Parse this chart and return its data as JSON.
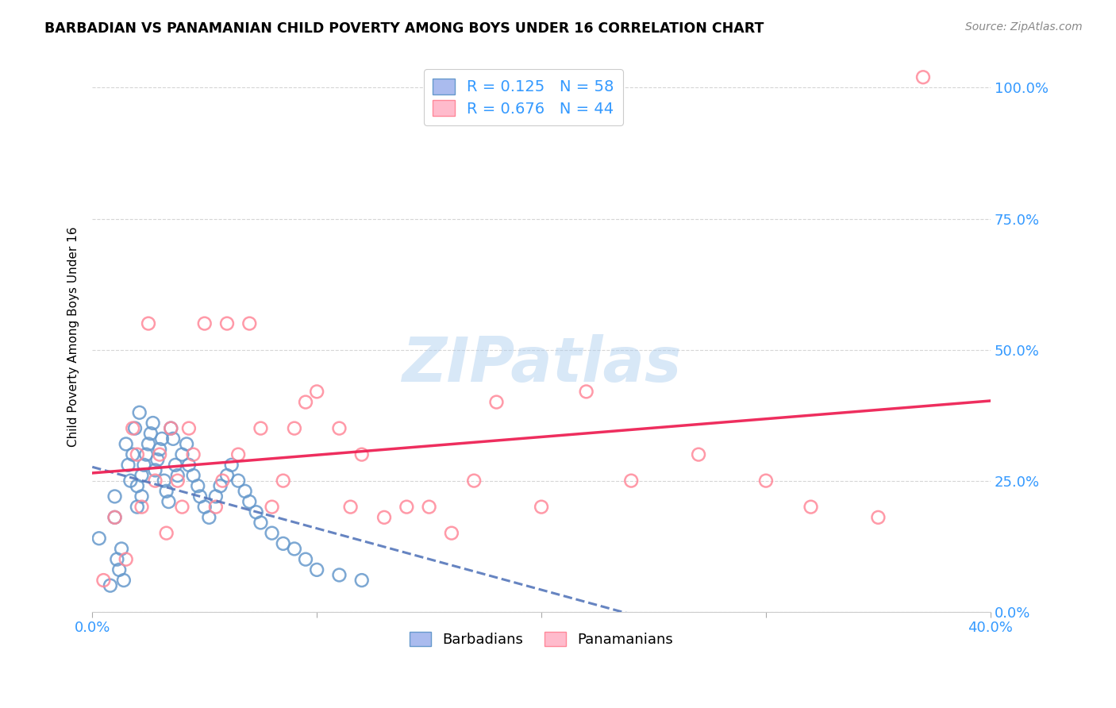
{
  "title": "BARBADIAN VS PANAMANIAN CHILD POVERTY AMONG BOYS UNDER 16 CORRELATION CHART",
  "source": "Source: ZipAtlas.com",
  "ylabel": "Child Poverty Among Boys Under 16",
  "xlim": [
    0.0,
    0.4
  ],
  "ylim": [
    0.0,
    1.05
  ],
  "xtick_positions": [
    0.0,
    0.1,
    0.2,
    0.3,
    0.4
  ],
  "xtick_labels": [
    "0.0%",
    "",
    "",
    "",
    "40.0%"
  ],
  "ytick_labels_right": [
    "0.0%",
    "25.0%",
    "50.0%",
    "75.0%",
    "100.0%"
  ],
  "yticks_right": [
    0.0,
    0.25,
    0.5,
    0.75,
    1.0
  ],
  "barbadian_color": "#6699cc",
  "panamanian_color": "#ff8899",
  "barbadian_line_color": "#5577bb",
  "panamanian_line_color": "#ee2255",
  "R_barbadian": 0.125,
  "N_barbadian": 58,
  "R_panamanian": 0.676,
  "N_panamanian": 44,
  "watermark": "ZIPatlas",
  "watermark_color": "#aaccee",
  "legend_label_barbadian": "Barbadians",
  "legend_label_panamanian": "Panamanians",
  "tick_color": "#3399ff",
  "barbadian_x": [
    0.003,
    0.008,
    0.01,
    0.01,
    0.011,
    0.012,
    0.013,
    0.014,
    0.015,
    0.016,
    0.017,
    0.018,
    0.019,
    0.02,
    0.02,
    0.021,
    0.022,
    0.022,
    0.023,
    0.024,
    0.025,
    0.026,
    0.027,
    0.028,
    0.029,
    0.03,
    0.031,
    0.032,
    0.033,
    0.034,
    0.035,
    0.036,
    0.037,
    0.038,
    0.04,
    0.042,
    0.043,
    0.045,
    0.047,
    0.048,
    0.05,
    0.052,
    0.055,
    0.057,
    0.06,
    0.062,
    0.065,
    0.068,
    0.07,
    0.073,
    0.075,
    0.08,
    0.085,
    0.09,
    0.095,
    0.1,
    0.11,
    0.12
  ],
  "barbadian_y": [
    0.14,
    0.05,
    0.18,
    0.22,
    0.1,
    0.08,
    0.12,
    0.06,
    0.32,
    0.28,
    0.25,
    0.3,
    0.35,
    0.2,
    0.24,
    0.38,
    0.22,
    0.26,
    0.28,
    0.3,
    0.32,
    0.34,
    0.36,
    0.27,
    0.29,
    0.31,
    0.33,
    0.25,
    0.23,
    0.21,
    0.35,
    0.33,
    0.28,
    0.26,
    0.3,
    0.32,
    0.28,
    0.26,
    0.24,
    0.22,
    0.2,
    0.18,
    0.22,
    0.24,
    0.26,
    0.28,
    0.25,
    0.23,
    0.21,
    0.19,
    0.17,
    0.15,
    0.13,
    0.12,
    0.1,
    0.08,
    0.07,
    0.06
  ],
  "panamanian_x": [
    0.005,
    0.01,
    0.015,
    0.018,
    0.02,
    0.022,
    0.025,
    0.028,
    0.03,
    0.033,
    0.035,
    0.038,
    0.04,
    0.043,
    0.045,
    0.05,
    0.055,
    0.058,
    0.06,
    0.065,
    0.07,
    0.075,
    0.08,
    0.085,
    0.09,
    0.095,
    0.1,
    0.11,
    0.115,
    0.12,
    0.13,
    0.14,
    0.15,
    0.16,
    0.17,
    0.18,
    0.2,
    0.22,
    0.24,
    0.27,
    0.3,
    0.32,
    0.35,
    0.37
  ],
  "panamanian_y": [
    0.06,
    0.18,
    0.1,
    0.35,
    0.3,
    0.2,
    0.55,
    0.25,
    0.3,
    0.15,
    0.35,
    0.25,
    0.2,
    0.35,
    0.3,
    0.55,
    0.2,
    0.25,
    0.55,
    0.3,
    0.55,
    0.35,
    0.2,
    0.25,
    0.35,
    0.4,
    0.42,
    0.35,
    0.2,
    0.3,
    0.18,
    0.2,
    0.2,
    0.15,
    0.25,
    0.4,
    0.2,
    0.42,
    0.25,
    0.3,
    0.25,
    0.2,
    0.18,
    1.02
  ]
}
